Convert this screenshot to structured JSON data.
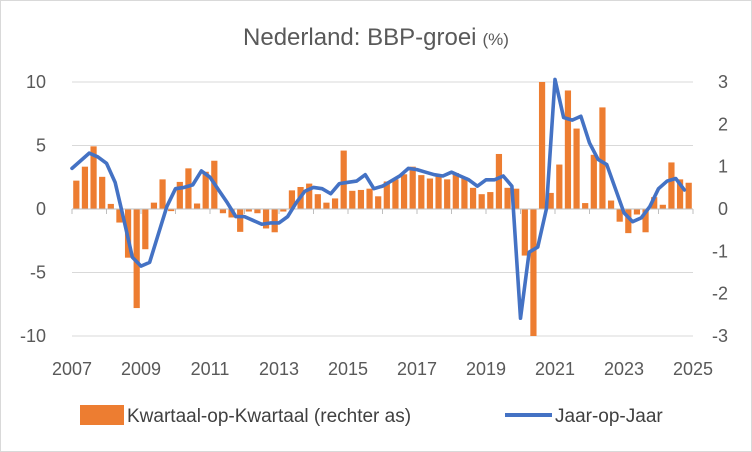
{
  "chart_data": {
    "type": "bar+line",
    "title": "Nederland: BBP-groei",
    "title_unit": "(%)",
    "x_tick_labels": [
      "2007",
      "2009",
      "2011",
      "2013",
      "2015",
      "2017",
      "2019",
      "2021",
      "2023",
      "2025"
    ],
    "left_axis": {
      "ylim": [
        -10,
        10
      ],
      "ticks": [
        -10,
        -5,
        0,
        5,
        10
      ]
    },
    "right_axis": {
      "ylim": [
        -3,
        3
      ],
      "ticks": [
        -3,
        -2,
        -1,
        0,
        1,
        2,
        3
      ]
    },
    "x_range": [
      2007.0,
      2025.0
    ],
    "bar_series": {
      "name": "Kwartaal-op-Kwartaal (rechter as)",
      "axis": "right",
      "color": "#ED7D31",
      "x": [
        2007.0,
        2007.25,
        2007.5,
        2007.75,
        2008.0,
        2008.25,
        2008.5,
        2008.75,
        2009.0,
        2009.25,
        2009.5,
        2009.75,
        2010.0,
        2010.25,
        2010.5,
        2010.75,
        2011.0,
        2011.25,
        2011.5,
        2011.75,
        2012.0,
        2012.25,
        2012.5,
        2012.75,
        2013.0,
        2013.25,
        2013.5,
        2013.75,
        2014.0,
        2014.25,
        2014.5,
        2014.75,
        2015.0,
        2015.25,
        2015.5,
        2015.75,
        2016.0,
        2016.25,
        2016.5,
        2016.75,
        2017.0,
        2017.25,
        2017.5,
        2017.75,
        2018.0,
        2018.25,
        2018.5,
        2018.75,
        2019.0,
        2019.25,
        2019.5,
        2019.75,
        2020.0,
        2020.25,
        2020.5,
        2020.75,
        2021.0,
        2021.25,
        2021.5,
        2021.75,
        2022.0,
        2022.25,
        2022.5,
        2022.75,
        2023.0,
        2023.25,
        2023.5,
        2023.75,
        2024.0,
        2024.25,
        2024.5,
        2024.75
      ],
      "values": [
        0.67,
        1.0,
        1.48,
        0.76,
        0.12,
        -0.32,
        -1.15,
        -2.34,
        -0.95,
        0.15,
        0.7,
        -0.05,
        0.64,
        0.96,
        0.13,
        0.88,
        1.14,
        -0.1,
        -0.2,
        -0.54,
        -0.06,
        -0.1,
        -0.46,
        -0.55,
        -0.06,
        0.44,
        0.52,
        0.6,
        0.35,
        0.15,
        0.25,
        1.38,
        0.43,
        0.45,
        0.48,
        0.3,
        0.65,
        0.7,
        0.82,
        1.0,
        0.8,
        0.72,
        0.8,
        0.7,
        0.85,
        0.75,
        0.5,
        0.35,
        0.4,
        1.3,
        0.5,
        0.48,
        -1.1,
        -3.0,
        3.0,
        0.38,
        1.05,
        2.8,
        1.9,
        0.14,
        1.28,
        2.4,
        0.2,
        -0.3,
        -0.57,
        -0.13,
        -0.55,
        0.28,
        0.1,
        1.1,
        0.7,
        0.62
      ]
    },
    "line_series": {
      "name": "Jaar-op-Jaar",
      "axis": "left",
      "color": "#4472C4",
      "x": [
        2007.0,
        2007.25,
        2007.5,
        2007.75,
        2008.0,
        2008.25,
        2008.5,
        2008.75,
        2009.0,
        2009.25,
        2009.5,
        2009.75,
        2010.0,
        2010.25,
        2010.5,
        2010.75,
        2011.0,
        2011.25,
        2011.5,
        2011.75,
        2012.0,
        2012.25,
        2012.5,
        2012.75,
        2013.0,
        2013.25,
        2013.5,
        2013.75,
        2014.0,
        2014.25,
        2014.5,
        2014.75,
        2015.0,
        2015.25,
        2015.5,
        2015.75,
        2016.0,
        2016.25,
        2016.5,
        2016.75,
        2017.0,
        2017.25,
        2017.5,
        2017.75,
        2018.0,
        2018.25,
        2018.5,
        2018.75,
        2019.0,
        2019.25,
        2019.5,
        2019.75,
        2020.0,
        2020.25,
        2020.5,
        2020.75,
        2021.0,
        2021.25,
        2021.5,
        2021.75,
        2022.0,
        2022.25,
        2022.5,
        2022.75,
        2023.0,
        2023.25,
        2023.5,
        2023.75,
        2024.0,
        2024.25,
        2024.5,
        2024.75
      ],
      "values": [
        3.2,
        3.8,
        4.4,
        4.1,
        3.6,
        2.1,
        -0.8,
        -3.8,
        -4.5,
        -4.2,
        -2.0,
        0.2,
        1.6,
        1.7,
        1.9,
        3.0,
        2.5,
        1.5,
        0.5,
        -0.6,
        -0.6,
        -0.9,
        -1.2,
        -1.1,
        -1.1,
        -0.6,
        0.5,
        1.4,
        1.7,
        1.6,
        1.2,
        2.0,
        2.1,
        2.2,
        2.7,
        1.6,
        1.8,
        2.2,
        2.6,
        3.2,
        3.1,
        2.9,
        2.7,
        2.6,
        2.9,
        2.6,
        2.3,
        1.8,
        2.3,
        2.3,
        2.6,
        1.8,
        -8.6,
        -3.4,
        -3.0,
        0.0,
        10.2,
        7.2,
        7.0,
        7.3,
        5.2,
        3.9,
        3.5,
        1.6,
        -0.3,
        -1.0,
        -0.7,
        0.2,
        1.6,
        2.2,
        2.4,
        1.5
      ]
    },
    "legend": {
      "placement": "bottom-center",
      "items": [
        {
          "label": "Kwartaal-op-Kwartaal (rechter as)",
          "kind": "bar",
          "color": "#ED7D31"
        },
        {
          "label": "Jaar-op-Jaar",
          "kind": "line",
          "color": "#4472C4"
        }
      ]
    }
  }
}
